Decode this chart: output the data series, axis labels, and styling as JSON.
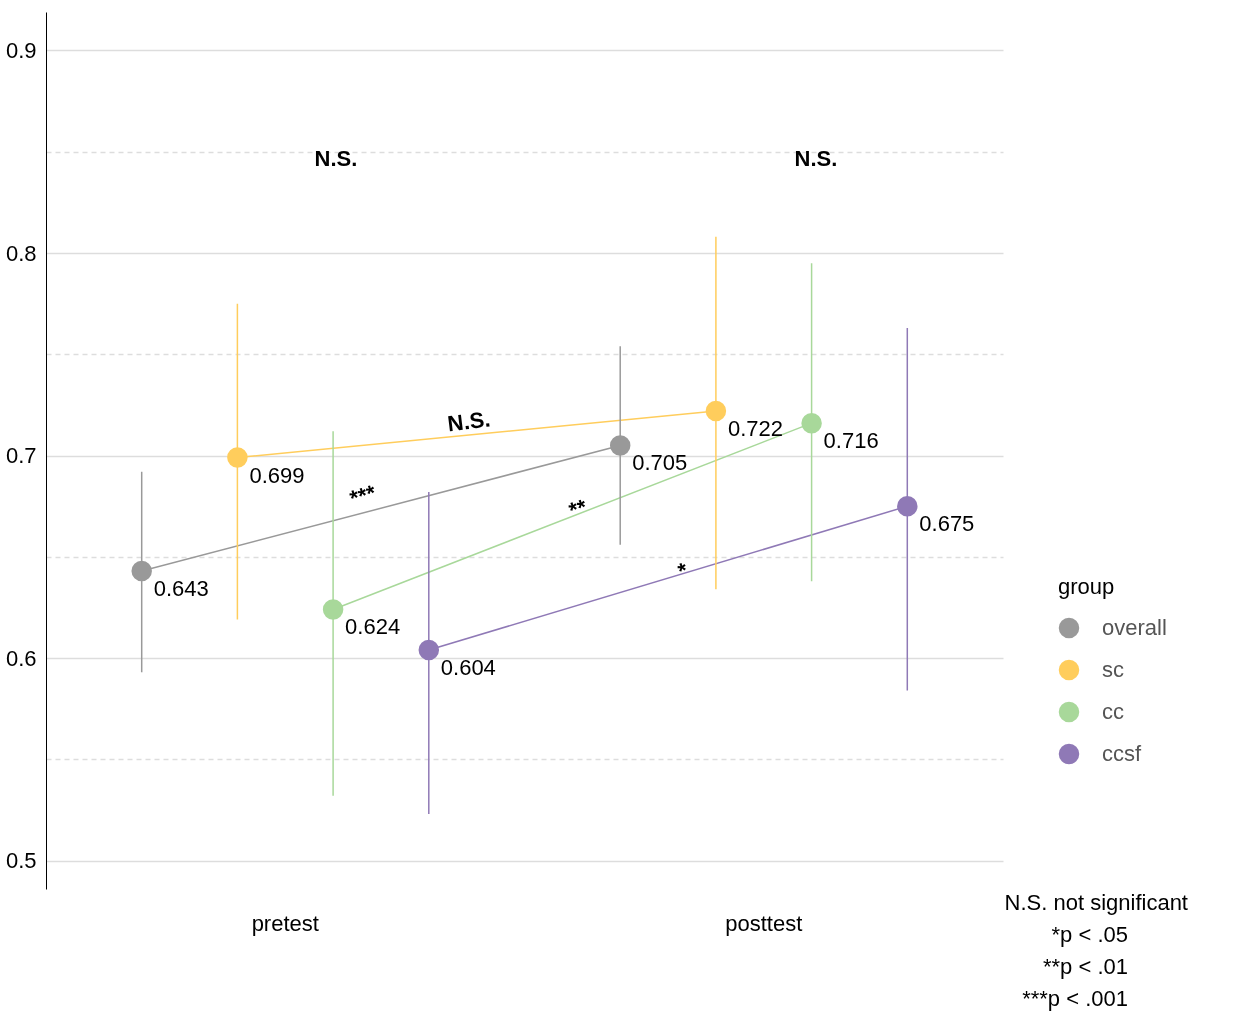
{
  "chart_data": {
    "type": "line",
    "categories": [
      "pretest",
      "posttest"
    ],
    "legend_title": "group",
    "legend": "right",
    "marker": "circle",
    "data_labels": true,
    "grid": "y",
    "ylim": [
      0.486,
      0.919
    ],
    "yticks": [
      0.5,
      {
        "value": 0.55,
        "label": null
      },
      0.6,
      {
        "value": 0.65,
        "label": null
      },
      0.7,
      {
        "value": 0.75,
        "label": null
      },
      0.8,
      {
        "value": 0.85,
        "label": null
      },
      0.9
    ],
    "series": [
      {
        "name": "overall",
        "color": "#999999",
        "values": [
          0.643,
          0.705
        ],
        "errors": [
          [
            0.593,
            0.692
          ],
          [
            0.656,
            0.754
          ]
        ]
      },
      {
        "name": "sc",
        "color": "#ffcd5c",
        "values": [
          0.699,
          0.722
        ],
        "errors": [
          [
            0.619,
            0.775
          ],
          [
            0.634,
            0.808
          ]
        ]
      },
      {
        "name": "cc",
        "color": "#a8d89a",
        "values": [
          0.624,
          0.716
        ],
        "errors": [
          [
            0.532,
            0.712
          ],
          [
            0.638,
            0.795
          ]
        ]
      },
      {
        "name": "ccsf",
        "color": "#8f79b6",
        "values": [
          0.604,
          0.675
        ],
        "errors": [
          [
            0.523,
            0.682
          ],
          [
            0.584,
            0.763
          ]
        ]
      }
    ],
    "annotations": [
      "N.S.",
      "N.S.",
      "N.S.",
      "***",
      "**",
      "*",
      "N.S. not significant",
      "*p < .05",
      "**p < .01",
      "***p < .001"
    ]
  }
}
